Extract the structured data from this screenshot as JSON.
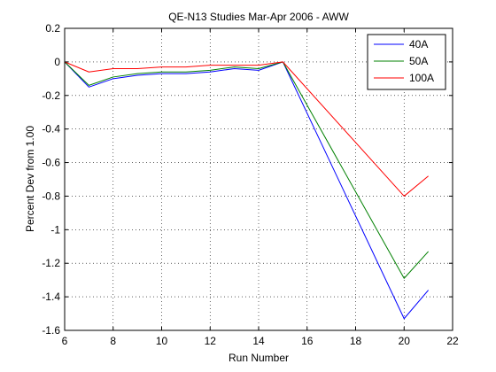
{
  "chart_data": {
    "type": "line",
    "title": "QE-N13 Studies Mar-Apr 2006 - AWW",
    "xlabel": "Run Number",
    "ylabel": "Percent Dev from 1.00",
    "xlim": [
      6,
      22
    ],
    "ylim": [
      -1.6,
      0.2
    ],
    "xticks": [
      6,
      8,
      10,
      12,
      14,
      16,
      18,
      20,
      22
    ],
    "xtick_labels": [
      "6",
      "8",
      "10",
      "12",
      "14",
      "16",
      "18",
      "20",
      "22"
    ],
    "yticks": [
      0.2,
      0,
      -0.2,
      -0.4,
      -0.6,
      -0.8,
      -1,
      -1.2,
      -1.4,
      -1.6
    ],
    "ytick_labels": [
      "0.2",
      "0",
      "-0.2",
      "-0.4",
      "-0.6",
      "-0.8",
      "-1",
      "-1.2",
      "-1.4",
      "-1.6"
    ],
    "grid": true,
    "grid_style": "dotted",
    "legend_position": "top-right",
    "x": [
      6,
      7,
      8,
      9,
      10,
      11,
      12,
      13,
      14,
      15,
      20,
      21
    ],
    "series": [
      {
        "name": "40A",
        "color": "#0000ff",
        "values": [
          0,
          -0.15,
          -0.1,
          -0.08,
          -0.07,
          -0.07,
          -0.06,
          -0.04,
          -0.05,
          0,
          -1.53,
          -1.36
        ]
      },
      {
        "name": "50A",
        "color": "#008000",
        "values": [
          0,
          -0.14,
          -0.09,
          -0.07,
          -0.06,
          -0.06,
          -0.05,
          -0.03,
          -0.04,
          0,
          -1.29,
          -1.13
        ]
      },
      {
        "name": "100A",
        "color": "#ff0000",
        "values": [
          0,
          -0.06,
          -0.04,
          -0.04,
          -0.03,
          -0.03,
          -0.02,
          -0.02,
          -0.02,
          0,
          -0.8,
          -0.68
        ]
      }
    ]
  }
}
